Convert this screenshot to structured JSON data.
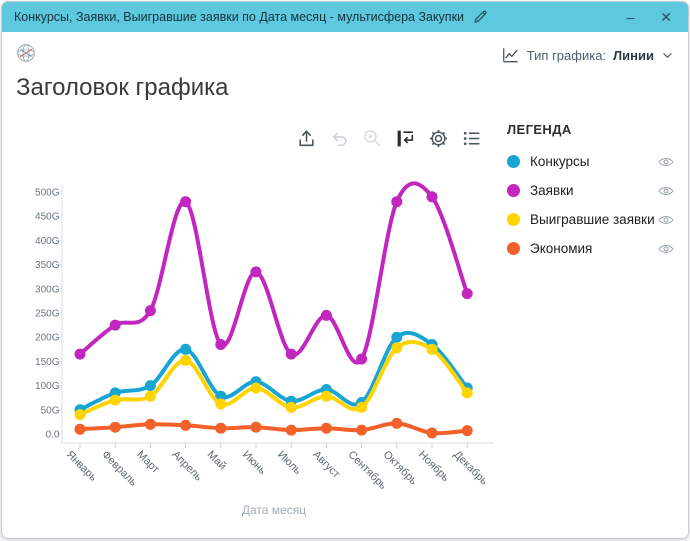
{
  "window": {
    "title": "Конкурсы, Заявки, Выигравшие заявки по Дата месяц - мультисфера Закупки",
    "minimize_label": "–",
    "close_label": "✕"
  },
  "header": {
    "chart_type_label": "Тип графика:",
    "chart_type_value": "Линии"
  },
  "chart_title": "Заголовок графика",
  "toolbar": {
    "items": [
      {
        "name": "export",
        "enabled": true
      },
      {
        "name": "undo",
        "enabled": false
      },
      {
        "name": "zoom",
        "enabled": false
      },
      {
        "name": "axis-settings",
        "enabled": true
      },
      {
        "name": "settings",
        "enabled": true
      },
      {
        "name": "legend-list",
        "enabled": true
      }
    ]
  },
  "legend": {
    "heading": "ЛЕГЕНДА",
    "items": [
      {
        "label": "Конкурсы",
        "color": "#17A5D6"
      },
      {
        "label": "Заявки",
        "color": "#C226BE"
      },
      {
        "label": "Выигравшие заявки",
        "color": "#FFD400"
      },
      {
        "label": "Экономия",
        "color": "#F2612A"
      }
    ]
  },
  "chart_data": {
    "type": "line",
    "title": "Заголовок графика",
    "xlabel": "Дата месяц",
    "ylabel": "",
    "ylim": [
      0,
      500
    ],
    "ytick_step": 50,
    "ytick_suffix": "G",
    "ytick_zero_label": "0.0",
    "grid": false,
    "legend_position": "right",
    "categories": [
      "Январь",
      "Февраль",
      "Март",
      "Апрель",
      "Май",
      "Июнь",
      "Июль",
      "Август",
      "Сентябрь",
      "Октябрь",
      "Ноябрь",
      "Декабрь"
    ],
    "series": [
      {
        "name": "Конкурсы",
        "color": "#17A5D6",
        "values": [
          50,
          85,
          100,
          175,
          78,
          108,
          68,
          92,
          65,
          200,
          185,
          95
        ]
      },
      {
        "name": "Заявки",
        "color": "#C226BE",
        "values": [
          165,
          225,
          255,
          480,
          185,
          335,
          165,
          245,
          155,
          480,
          490,
          290
        ]
      },
      {
        "name": "Выигравшие заявки",
        "color": "#FFD400",
        "values": [
          40,
          70,
          78,
          152,
          62,
          95,
          55,
          78,
          55,
          178,
          175,
          85
        ]
      },
      {
        "name": "Экономия",
        "color": "#F2612A",
        "values": [
          10,
          14,
          20,
          18,
          12,
          14,
          8,
          12,
          8,
          22,
          2,
          7
        ]
      }
    ]
  }
}
